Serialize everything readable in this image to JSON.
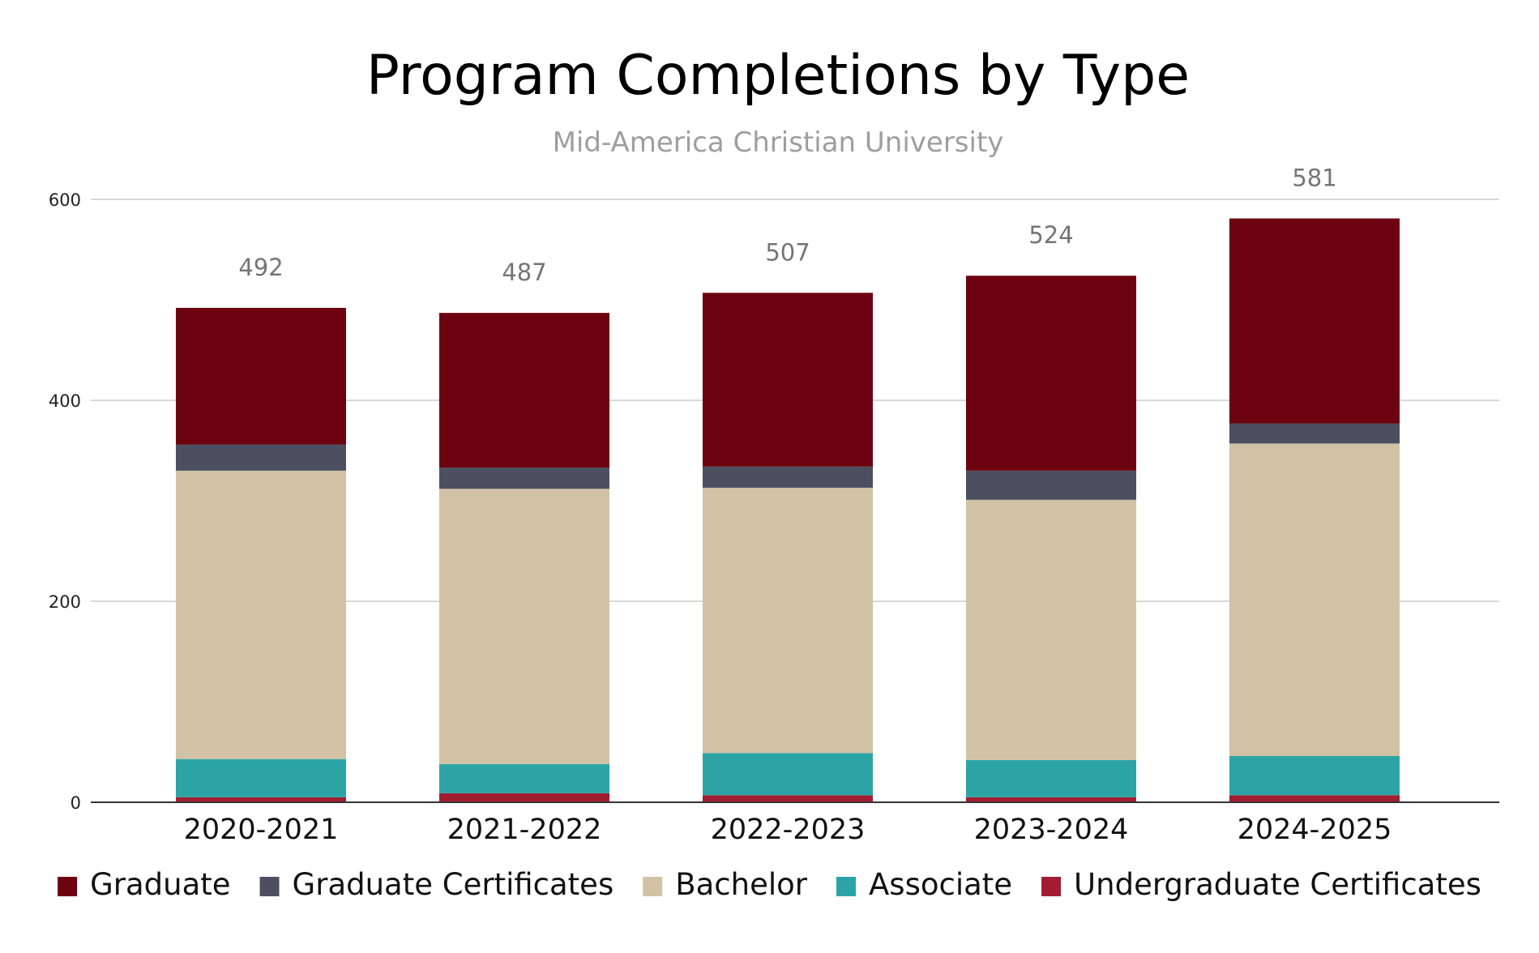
{
  "chart_data": {
    "type": "bar",
    "stacked": true,
    "title": "Program Completions by Type",
    "subtitle": "Mid-America Christian University",
    "xlabel": "",
    "ylabel": "",
    "ylim": [
      0,
      600
    ],
    "yticks": [
      0,
      200,
      400,
      600
    ],
    "grid": true,
    "legend_position": "bottom",
    "categories": [
      "2020-2021",
      "2021-2022",
      "2022-2023",
      "2023-2024",
      "2024-2025"
    ],
    "totals": [
      492,
      487,
      507,
      524,
      581
    ],
    "series": [
      {
        "name": "Undergraduate Certificates",
        "color": "#a21d32",
        "values": [
          5,
          9,
          7,
          5,
          7
        ]
      },
      {
        "name": "Associate",
        "color": "#2ca4a6",
        "values": [
          38,
          29,
          42,
          37,
          39
        ]
      },
      {
        "name": "Bachelor",
        "color": "#d1c2a5",
        "values": [
          287,
          274,
          264,
          259,
          311
        ]
      },
      {
        "name": "Graduate Certificates",
        "color": "#4b4f60",
        "values": [
          26,
          21,
          21,
          29,
          20
        ]
      },
      {
        "name": "Graduate",
        "color": "#6d0310",
        "values": [
          136,
          154,
          173,
          194,
          204
        ]
      }
    ],
    "legend_order": [
      "Graduate",
      "Graduate Certificates",
      "Bachelor",
      "Associate",
      "Undergraduate Certificates"
    ]
  }
}
